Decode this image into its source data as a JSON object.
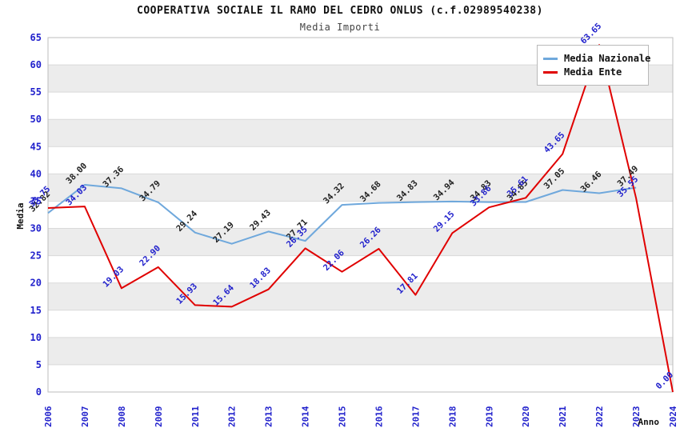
{
  "header": {
    "title": "COOPERATIVA SOCIALE IL RAMO DEL CEDRO ONLUS (c.f.02989540238)",
    "subtitle": "Media Importi"
  },
  "legend": {
    "position": "top-right",
    "items": [
      {
        "label": "Media Nazionale",
        "color": "#6FA8DC"
      },
      {
        "label": "Media Ente",
        "color": "#E00000"
      }
    ]
  },
  "colors": {
    "tick_blue": "#2121CC",
    "label_black": "#222222",
    "band_gray": "#ececec",
    "grid_line": "#d9d9d9",
    "plot_border": "#bdbdbd",
    "background": "#ffffff"
  },
  "chart_data": {
    "type": "line",
    "title": "COOPERATIVA SOCIALE IL RAMO DEL CEDRO ONLUS (c.f.02989540238)",
    "subtitle": "Media Importi",
    "xlabel": "Anno",
    "ylabel": "Media",
    "ylim": [
      0,
      65
    ],
    "y_ticks": [
      0,
      5,
      10,
      15,
      20,
      25,
      30,
      35,
      40,
      45,
      50,
      55,
      60,
      65
    ],
    "grid": "horizontal-bands-alternating",
    "legend_position": "top-right",
    "point_label_format": "two-decimals",
    "point_label_rotation": -45,
    "categories": [
      "2006",
      "2007",
      "2008",
      "2009",
      "2011",
      "2012",
      "2013",
      "2014",
      "2015",
      "2016",
      "2017",
      "2018",
      "2019",
      "2020",
      "2021",
      "2022",
      "2023",
      "2024"
    ],
    "series": [
      {
        "name": "Media Nazionale",
        "color": "#6FA8DC",
        "label_color": "#222222",
        "values": [
          32.82,
          38.0,
          37.36,
          34.79,
          29.24,
          27.19,
          29.43,
          27.71,
          34.32,
          34.68,
          34.83,
          34.94,
          34.83,
          34.85,
          37.05,
          36.46,
          37.49,
          null
        ]
      },
      {
        "name": "Media Ente",
        "color": "#E00000",
        "label_color": "#2121CC",
        "values": [
          33.75,
          34.03,
          19.03,
          22.9,
          15.93,
          15.64,
          18.83,
          26.35,
          22.06,
          26.26,
          17.81,
          29.15,
          33.86,
          35.61,
          43.65,
          63.65,
          35.55,
          0.0
        ]
      }
    ]
  }
}
